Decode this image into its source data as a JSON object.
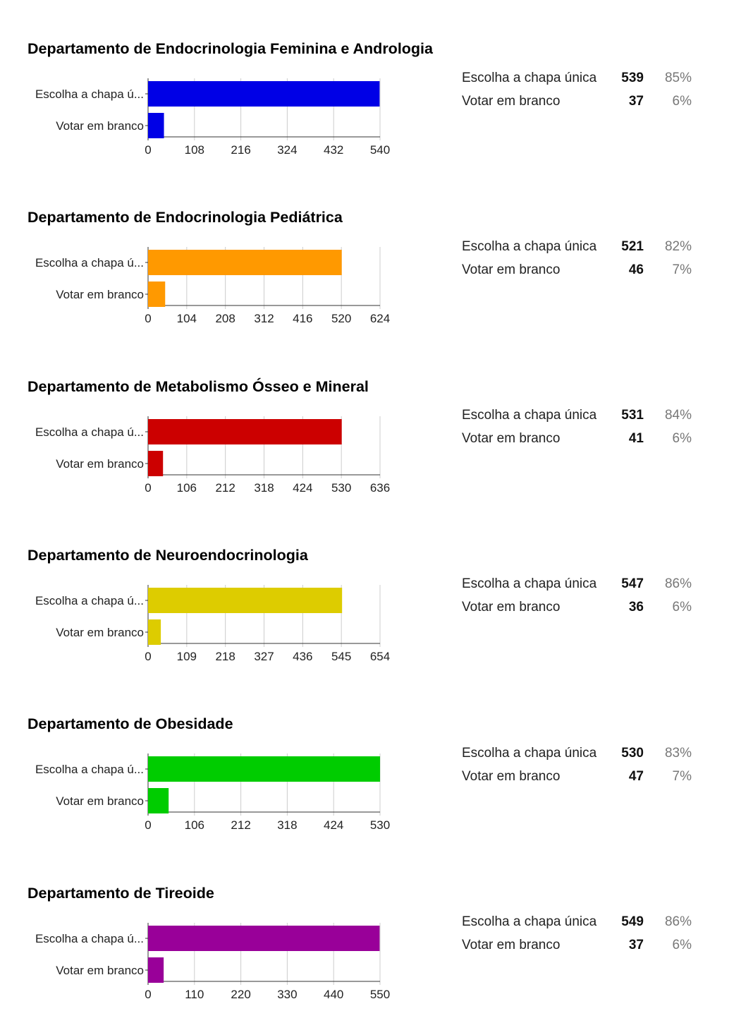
{
  "chart_data": [
    {
      "type": "bar",
      "orientation": "horizontal",
      "title": "Departamento de Endocrinologia Feminina e Andrologia",
      "color": "#0000e6",
      "categories": [
        "Escolha a chapa ú...",
        "Votar em branco"
      ],
      "values": [
        539,
        37
      ],
      "xlim": [
        0,
        540
      ],
      "xticks": [
        "0",
        "108",
        "216",
        "324",
        "432",
        "540"
      ],
      "summary": [
        {
          "label": "Escolha a chapa única",
          "count": "539",
          "percent": "85%"
        },
        {
          "label": "Votar em branco",
          "count": "37",
          "percent": "6%"
        }
      ]
    },
    {
      "type": "bar",
      "orientation": "horizontal",
      "title": "Departamento de Endocrinologia Pediátrica",
      "color": "#ff9900",
      "categories": [
        "Escolha a chapa ú...",
        "Votar em branco"
      ],
      "values": [
        521,
        46
      ],
      "xlim": [
        0,
        624
      ],
      "xticks": [
        "0",
        "104",
        "208",
        "312",
        "416",
        "520",
        "624"
      ],
      "summary": [
        {
          "label": "Escolha a chapa única",
          "count": "521",
          "percent": "82%"
        },
        {
          "label": "Votar em branco",
          "count": "46",
          "percent": "7%"
        }
      ]
    },
    {
      "type": "bar",
      "orientation": "horizontal",
      "title": "Departamento de Metabolismo Ósseo e Mineral",
      "color": "#cc0000",
      "categories": [
        "Escolha a chapa ú...",
        "Votar em branco"
      ],
      "values": [
        531,
        41
      ],
      "xlim": [
        0,
        636
      ],
      "xticks": [
        "0",
        "106",
        "212",
        "318",
        "424",
        "530",
        "636"
      ],
      "summary": [
        {
          "label": "Escolha a chapa única",
          "count": "531",
          "percent": "84%"
        },
        {
          "label": "Votar em branco",
          "count": "41",
          "percent": "6%"
        }
      ]
    },
    {
      "type": "bar",
      "orientation": "horizontal",
      "title": "Departamento de Neuroendocrinologia",
      "color": "#ddcc00",
      "categories": [
        "Escolha a chapa ú...",
        "Votar em branco"
      ],
      "values": [
        547,
        36
      ],
      "xlim": [
        0,
        654
      ],
      "xticks": [
        "0",
        "109",
        "218",
        "327",
        "436",
        "545",
        "654"
      ],
      "summary": [
        {
          "label": "Escolha a chapa única",
          "count": "547",
          "percent": "86%"
        },
        {
          "label": "Votar em branco",
          "count": "36",
          "percent": "6%"
        }
      ]
    },
    {
      "type": "bar",
      "orientation": "horizontal",
      "title": "Departamento de Obesidade",
      "color": "#00cc00",
      "categories": [
        "Escolha a chapa ú...",
        "Votar em branco"
      ],
      "values": [
        530,
        47
      ],
      "xlim": [
        0,
        530
      ],
      "xticks": [
        "0",
        "106",
        "212",
        "318",
        "424",
        "530"
      ],
      "summary": [
        {
          "label": "Escolha a chapa única",
          "count": "530",
          "percent": "83%"
        },
        {
          "label": "Votar em branco",
          "count": "47",
          "percent": "7%"
        }
      ]
    },
    {
      "type": "bar",
      "orientation": "horizontal",
      "title": "Departamento de Tireoide",
      "color": "#990099",
      "categories": [
        "Escolha a chapa ú...",
        "Votar em branco"
      ],
      "values": [
        549,
        37
      ],
      "xlim": [
        0,
        550
      ],
      "xticks": [
        "0",
        "110",
        "220",
        "330",
        "440",
        "550"
      ],
      "summary": [
        {
          "label": "Escolha a chapa única",
          "count": "549",
          "percent": "86%"
        },
        {
          "label": "Votar em branco",
          "count": "37",
          "percent": "6%"
        }
      ]
    }
  ]
}
